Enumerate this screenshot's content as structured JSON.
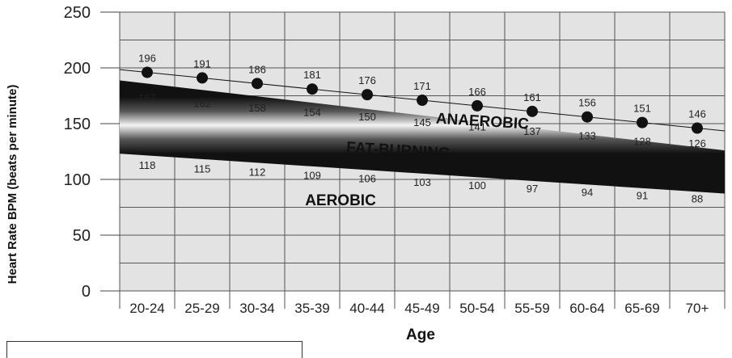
{
  "chart_data": {
    "type": "line",
    "title": "",
    "xlabel": "Age",
    "ylabel": "Heart Rate BPM (beats per minute)",
    "ylim": [
      0,
      250
    ],
    "yticks": [
      0,
      50,
      100,
      150,
      200,
      250
    ],
    "grid": true,
    "categories": [
      "20-24",
      "25-29",
      "30-34",
      "35-39",
      "40-44",
      "45-49",
      "50-54",
      "55-59",
      "60-64",
      "65-69",
      "70+"
    ],
    "series": [
      {
        "name": "",
        "role": "max",
        "values": [
          196,
          191,
          186,
          181,
          176,
          171,
          166,
          161,
          156,
          151,
          146
        ]
      },
      {
        "name": "",
        "role": "upper",
        "values": [
          167,
          162,
          158,
          154,
          150,
          145,
          141,
          137,
          133,
          128,
          126
        ]
      },
      {
        "name": "",
        "role": "lower",
        "values": [
          118,
          115,
          112,
          109,
          106,
          103,
          100,
          97,
          94,
          91,
          88
        ]
      }
    ],
    "zones": [
      {
        "label": "ANAEROBIC"
      },
      {
        "label": "FAT-BURNING"
      },
      {
        "label": "AEROBIC"
      }
    ],
    "colors": {
      "grid_fill": "#e3e3e3",
      "grid_line": "#555555",
      "band_dark": "#111111",
      "band_light": "#f4f4f4",
      "marker": "#111111"
    }
  }
}
